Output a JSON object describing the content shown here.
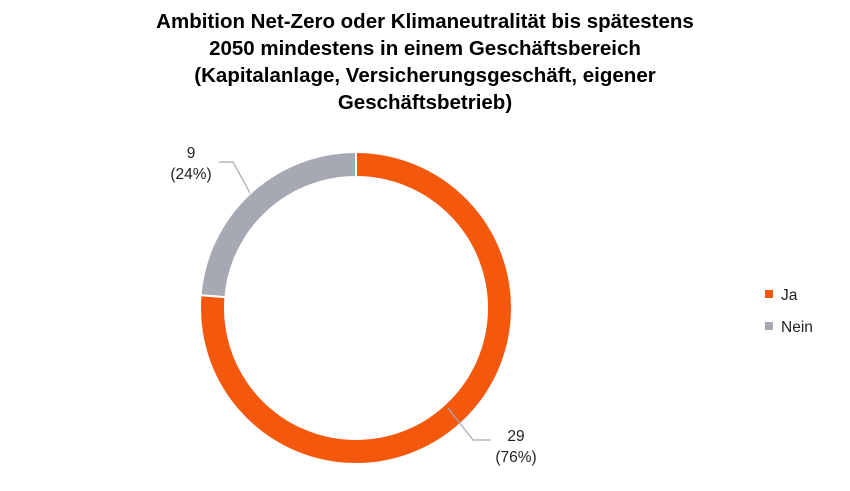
{
  "chart_data": {
    "type": "pie",
    "donut": true,
    "title_lines": [
      "Ambition Net-Zero oder Klimaneutralität bis spätestens",
      "2050 mindestens in einem Geschäftsbereich",
      "(Kapitalanlage, Versicherungsgeschäft, eigener",
      "Geschäftsbetrieb)"
    ],
    "slices": [
      {
        "name": "Ja",
        "value": 29,
        "percent_label": "(76%)",
        "color": "#f4580d"
      },
      {
        "name": "Nein",
        "value": 9,
        "percent_label": "(24%)",
        "color": "#a6a9b3"
      }
    ],
    "legend_position": "right"
  }
}
